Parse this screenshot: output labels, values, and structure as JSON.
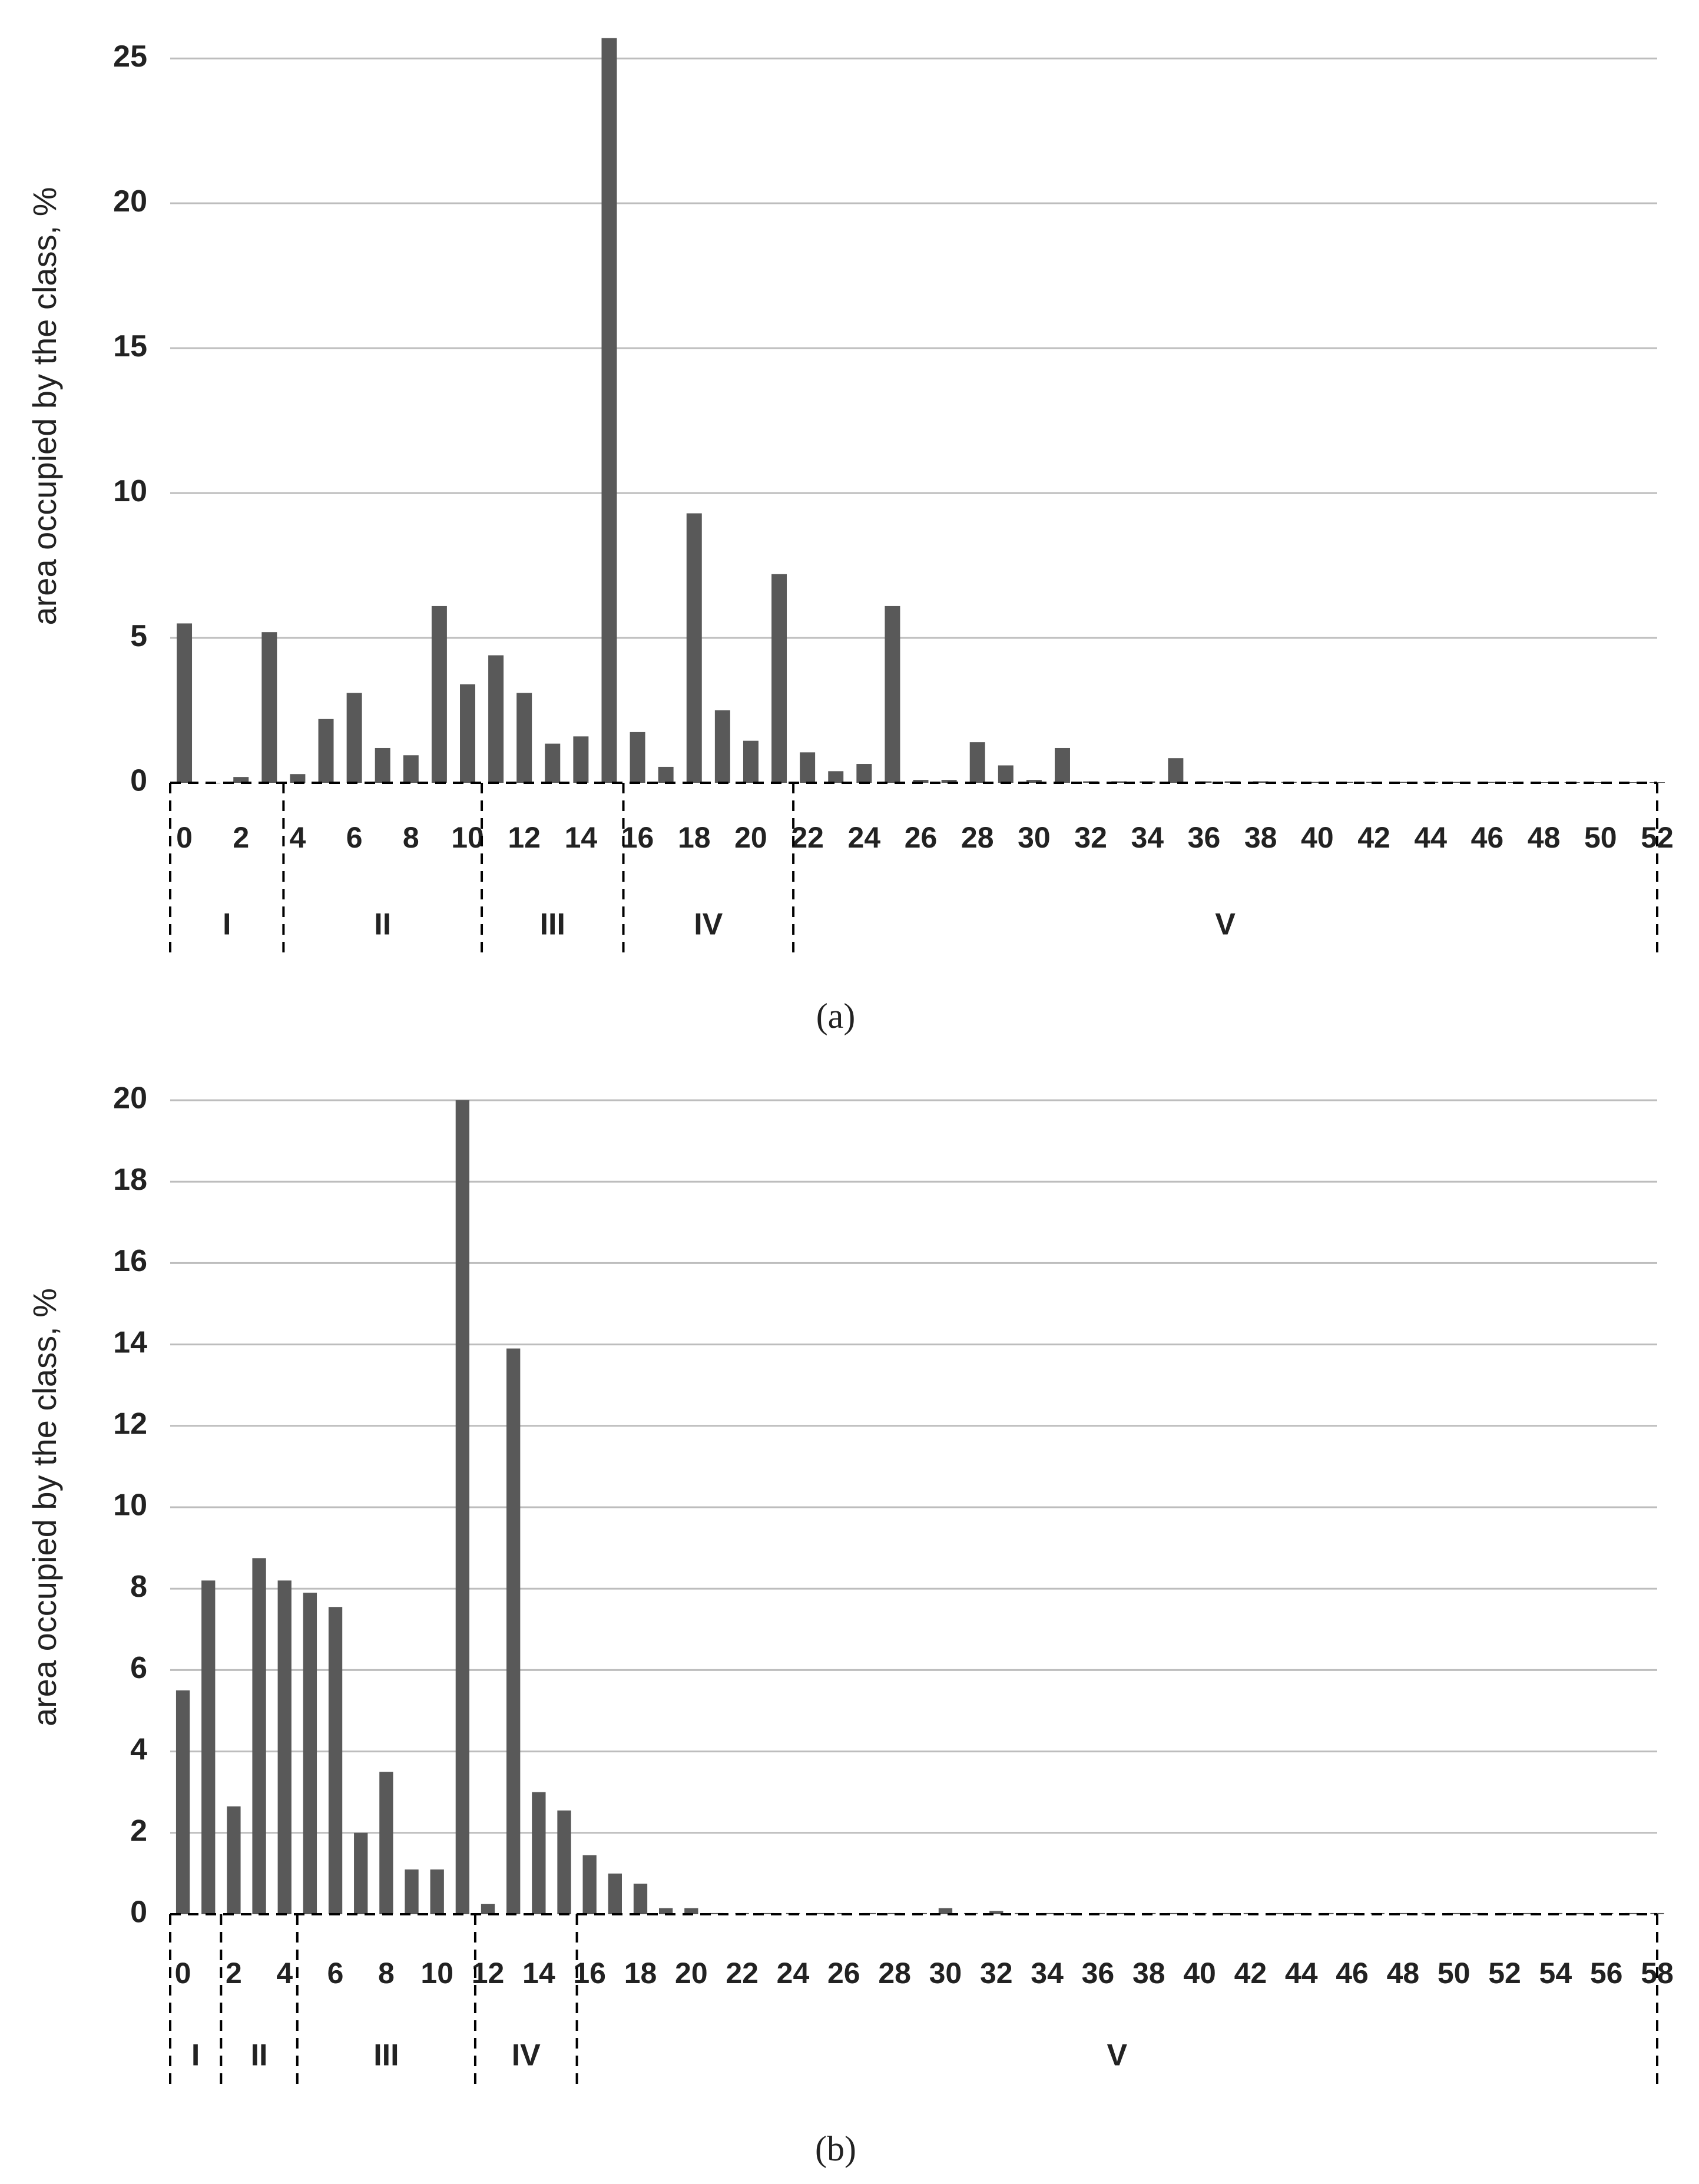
{
  "chart_data": [
    {
      "type": "bar",
      "ylabel": "area occupied by the class, %",
      "caption": "(a)",
      "color": "#595959",
      "grid": true,
      "categories": [
        "0",
        null,
        "2",
        null,
        "4",
        null,
        "6",
        null,
        "8",
        null,
        "10",
        null,
        "12",
        null,
        "14",
        null,
        "16",
        null,
        "18",
        null,
        "20",
        null,
        "22",
        null,
        "24",
        null,
        "26",
        null,
        "28",
        null,
        "30",
        null,
        "32",
        null,
        "34",
        null,
        "36",
        null,
        "38",
        null,
        "40",
        null,
        "42",
        null,
        "44",
        null,
        "46",
        null,
        "48",
        null,
        "50",
        null,
        "52"
      ],
      "values": [
        5.5,
        0,
        0.2,
        5.2,
        0.3,
        2.2,
        3.1,
        1.2,
        0.95,
        6.1,
        3.4,
        4.4,
        3.1,
        1.35,
        1.6,
        25.7,
        1.75,
        0.55,
        9.3,
        2.5,
        1.45,
        7.2,
        1.05,
        0.4,
        0.65,
        6.1,
        0.1,
        0.1,
        1.4,
        0.6,
        0.1,
        1.2,
        0.05,
        0.05,
        0.05,
        0.85,
        0.05,
        0.05,
        0.05,
        0.03,
        0.03,
        0.03,
        0.03,
        0.03,
        0.03,
        0.03,
        0.03,
        0.02,
        0.02,
        0.02,
        0.02,
        0.02,
        0.02
      ],
      "ylim": [
        0,
        26
      ],
      "yticks": [
        0,
        5,
        10,
        15,
        20,
        25
      ],
      "groups": [
        {
          "label": "I",
          "from": 0,
          "to": 3
        },
        {
          "label": "II",
          "from": 4,
          "to": 10
        },
        {
          "label": "III",
          "from": 11,
          "to": 15
        },
        {
          "label": "IV",
          "from": 16,
          "to": 21
        },
        {
          "label": "V",
          "from": 22,
          "to": 52
        }
      ]
    },
    {
      "type": "bar",
      "ylabel": "area occupied by the class, %",
      "caption": "(b)",
      "color": "#595959",
      "grid": true,
      "categories": [
        "0",
        null,
        "2",
        null,
        "4",
        null,
        "6",
        null,
        "8",
        null,
        "10",
        null,
        "12",
        null,
        "14",
        null,
        "16",
        null,
        "18",
        null,
        "20",
        null,
        "22",
        null,
        "24",
        null,
        "26",
        null,
        "28",
        null,
        "30",
        null,
        "32",
        null,
        "34",
        null,
        "36",
        null,
        "38",
        null,
        "40",
        null,
        "42",
        null,
        "44",
        null,
        "46",
        null,
        "48",
        null,
        "50",
        null,
        "52",
        null,
        "54",
        null,
        "56",
        null,
        "58"
      ],
      "values": [
        5.5,
        8.2,
        2.65,
        8.75,
        8.2,
        7.9,
        7.55,
        2.0,
        3.5,
        1.1,
        1.1,
        20,
        0.25,
        13.9,
        3.0,
        2.55,
        1.45,
        1.0,
        0.75,
        0.15,
        0.15,
        0.03,
        0.03,
        0.03,
        0.03,
        0.03,
        0.03,
        0.03,
        0.03,
        0.03,
        0.15,
        0.03,
        0.08,
        0.03,
        0.03,
        0.03,
        0.03,
        0.03,
        0.03,
        0.03,
        0.03,
        0.03,
        0.03,
        0.03,
        0.03,
        0.03,
        0.03,
        0.03,
        0.03,
        0.03,
        0.03,
        0.03,
        0.03,
        0.03,
        0.03,
        0.03,
        0.03,
        0.03,
        0.03
      ],
      "ylim": [
        0,
        20
      ],
      "yticks": [
        0,
        2,
        4,
        6,
        8,
        10,
        12,
        14,
        16,
        18,
        20
      ],
      "groups": [
        {
          "label": "I",
          "from": 0,
          "to": 1
        },
        {
          "label": "II",
          "from": 2,
          "to": 4
        },
        {
          "label": "III",
          "from": 5,
          "to": 11
        },
        {
          "label": "IV",
          "from": 12,
          "to": 15
        },
        {
          "label": "V",
          "from": 16,
          "to": 58
        }
      ]
    }
  ]
}
